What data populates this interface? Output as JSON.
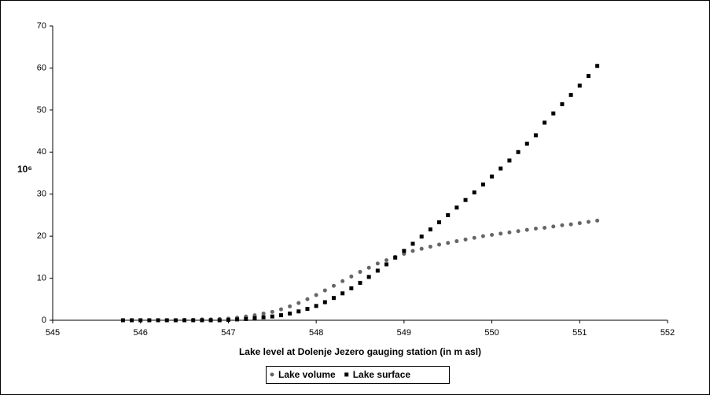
{
  "chart_data": {
    "type": "scatter",
    "xlabel": "Lake level at Dolenje Jezero gauging station (in m asl)",
    "ylabel": "10⁶",
    "x": [
      545.8,
      545.9,
      546.0,
      546.1,
      546.2,
      546.3,
      546.4,
      546.5,
      546.6,
      546.7,
      546.8,
      546.9,
      547.0,
      547.1,
      547.2,
      547.3,
      547.4,
      547.5,
      547.6,
      547.7,
      547.8,
      547.9,
      548.0,
      548.1,
      548.2,
      548.3,
      548.4,
      548.5,
      548.6,
      548.7,
      548.8,
      548.9,
      549.0,
      549.1,
      549.2,
      549.3,
      549.4,
      549.5,
      549.6,
      549.7,
      549.8,
      549.9,
      550.0,
      550.1,
      550.2,
      550.3,
      550.4,
      550.5,
      550.6,
      550.7,
      550.8,
      550.9,
      551.0,
      551.1,
      551.2
    ],
    "series": [
      {
        "name": "Lake volume",
        "color": "#666666",
        "marker": "circle",
        "values": [
          0,
          0,
          0,
          0,
          0,
          0,
          0,
          0.1,
          0.1,
          0.2,
          0.2,
          0.3,
          0.4,
          0.6,
          0.9,
          1.2,
          1.6,
          2.0,
          2.6,
          3.3,
          4.1,
          5.0,
          6.0,
          7.1,
          8.2,
          9.3,
          10.4,
          11.5,
          12.5,
          13.5,
          14.3,
          15.1,
          15.8,
          16.5,
          17.0,
          17.5,
          18.0,
          18.4,
          18.8,
          19.2,
          19.6,
          20.0,
          20.3,
          20.6,
          20.9,
          21.2,
          21.5,
          21.8,
          22.0,
          22.3,
          22.6,
          22.8,
          23.1,
          23.4,
          23.7
        ]
      },
      {
        "name": "Lake surface",
        "color": "#000000",
        "marker": "square",
        "values": [
          0,
          0,
          0,
          0,
          0,
          0,
          0,
          0,
          0,
          0,
          0,
          0,
          0.1,
          0.2,
          0.3,
          0.5,
          0.7,
          0.9,
          1.2,
          1.6,
          2.1,
          2.7,
          3.4,
          4.3,
          5.3,
          6.4,
          7.6,
          8.9,
          10.3,
          11.8,
          13.3,
          14.9,
          16.5,
          18.2,
          19.9,
          21.6,
          23.3,
          25.0,
          26.8,
          28.6,
          30.4,
          32.3,
          34.2,
          36.1,
          38.0,
          40.0,
          42.0,
          44.0,
          47.0,
          49.2,
          51.4,
          53.6,
          55.8,
          58.1,
          60.5
        ]
      }
    ],
    "xlim": [
      545,
      552
    ],
    "xticks": [
      545,
      546,
      547,
      548,
      549,
      550,
      551,
      552
    ],
    "ylim": [
      0,
      70
    ],
    "yticks": [
      0,
      10,
      20,
      30,
      40,
      50,
      60,
      70
    ],
    "grid": false
  }
}
